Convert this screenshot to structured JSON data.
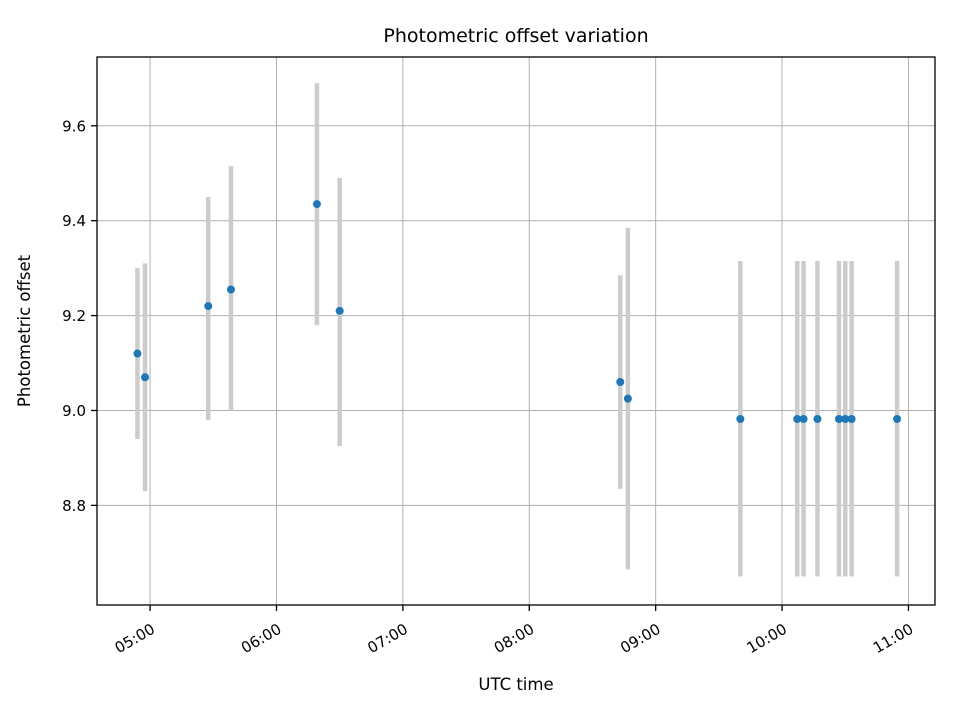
{
  "chart_data": {
    "type": "scatter",
    "title": "Photometric offset variation",
    "xlabel": "UTC time",
    "ylabel": "Photometric offset",
    "grid": true,
    "legend": "none",
    "point_color": "#1f77b4",
    "errorbar_color": "#cccccc",
    "grid_color": "#b0b0b0",
    "xlim": [
      4.58,
      11.21
    ],
    "ylim": [
      8.59,
      9.745
    ],
    "x_ticks": [
      5,
      6,
      7,
      8,
      9,
      10,
      11
    ],
    "x_tick_labels": [
      "05:00",
      "06:00",
      "07:00",
      "08:00",
      "09:00",
      "10:00",
      "11:00"
    ],
    "y_ticks": [
      8.8,
      9.0,
      9.2,
      9.4,
      9.6
    ],
    "y_tick_labels": [
      "8.8",
      "9.0",
      "9.2",
      "9.4",
      "9.6"
    ],
    "points": [
      {
        "t": 4.9,
        "y": 9.12,
        "lo": 8.94,
        "hi": 9.3
      },
      {
        "t": 4.96,
        "y": 9.07,
        "lo": 8.83,
        "hi": 9.31
      },
      {
        "t": 5.46,
        "y": 9.22,
        "lo": 8.98,
        "hi": 9.45
      },
      {
        "t": 5.64,
        "y": 9.255,
        "lo": 9.0,
        "hi": 9.515
      },
      {
        "t": 6.32,
        "y": 9.435,
        "lo": 9.18,
        "hi": 9.69
      },
      {
        "t": 6.5,
        "y": 9.21,
        "lo": 8.925,
        "hi": 9.49
      },
      {
        "t": 8.72,
        "y": 9.06,
        "lo": 8.835,
        "hi": 9.285
      },
      {
        "t": 8.78,
        "y": 9.025,
        "lo": 8.665,
        "hi": 9.385
      },
      {
        "t": 9.67,
        "y": 8.982,
        "lo": 8.65,
        "hi": 9.315
      },
      {
        "t": 10.12,
        "y": 8.982,
        "lo": 8.65,
        "hi": 9.315
      },
      {
        "t": 10.17,
        "y": 8.982,
        "lo": 8.65,
        "hi": 9.315
      },
      {
        "t": 10.28,
        "y": 8.982,
        "lo": 8.65,
        "hi": 9.315
      },
      {
        "t": 10.45,
        "y": 8.982,
        "lo": 8.65,
        "hi": 9.315
      },
      {
        "t": 10.5,
        "y": 8.982,
        "lo": 8.65,
        "hi": 9.315
      },
      {
        "t": 10.55,
        "y": 8.982,
        "lo": 8.65,
        "hi": 9.315
      },
      {
        "t": 10.91,
        "y": 8.982,
        "lo": 8.65,
        "hi": 9.315
      }
    ]
  }
}
